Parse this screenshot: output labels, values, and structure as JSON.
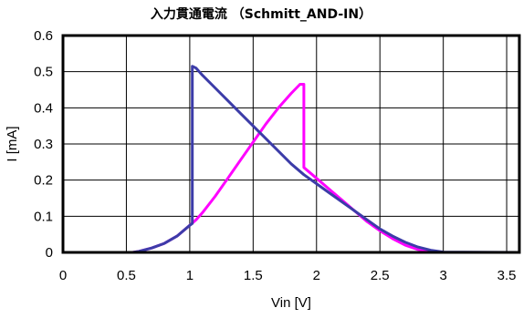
{
  "chart_data": {
    "type": "line",
    "title": "入力貫通電流 （Schmitt_AND-IN）",
    "xlabel": "Vin [V]",
    "ylabel": "I [mA]",
    "xlim": [
      0,
      3.6
    ],
    "ylim": [
      0,
      0.6
    ],
    "x_ticks": [
      0,
      0.5,
      1,
      1.5,
      2,
      2.5,
      3,
      3.5
    ],
    "x_tick_labels": [
      "0",
      "0.5",
      "1",
      "1.5",
      "2",
      "2.5",
      "3",
      "3.5"
    ],
    "y_ticks": [
      0,
      0.1,
      0.2,
      0.3,
      0.4,
      0.5,
      0.6
    ],
    "y_tick_labels": [
      "0",
      "0.1",
      "0.2",
      "0.3",
      "0.4",
      "0.5",
      "0.6"
    ],
    "grid": true,
    "series": [
      {
        "color": "#ff00ff",
        "x": [
          0,
          0.55,
          0.6,
          0.7,
          0.8,
          0.9,
          1.0,
          1.05,
          1.1,
          1.2,
          1.3,
          1.4,
          1.5,
          1.6,
          1.7,
          1.8,
          1.87,
          1.9,
          1.9,
          1.95,
          2.0,
          2.1,
          2.2,
          2.3,
          2.4,
          2.5,
          2.6,
          2.7,
          2.8,
          2.9,
          3.0,
          3.6
        ],
        "y": [
          0,
          0,
          0.003,
          0.012,
          0.025,
          0.045,
          0.075,
          0.09,
          0.11,
          0.155,
          0.205,
          0.255,
          0.305,
          0.355,
          0.4,
          0.44,
          0.465,
          0.465,
          0.235,
          0.22,
          0.205,
          0.175,
          0.145,
          0.115,
          0.085,
          0.06,
          0.038,
          0.02,
          0.008,
          0.002,
          0,
          0
        ]
      },
      {
        "color": "#3c3ca8",
        "x": [
          0,
          0.55,
          0.6,
          0.7,
          0.8,
          0.9,
          1.0,
          1.02,
          1.02,
          1.05,
          1.1,
          1.2,
          1.3,
          1.4,
          1.5,
          1.6,
          1.7,
          1.8,
          1.9,
          2.0,
          2.1,
          2.2,
          2.3,
          2.4,
          2.5,
          2.6,
          2.7,
          2.8,
          2.9,
          3.0,
          3.6
        ],
        "y": [
          0,
          0,
          0.003,
          0.012,
          0.025,
          0.045,
          0.075,
          0.08,
          0.515,
          0.51,
          0.49,
          0.455,
          0.42,
          0.385,
          0.35,
          0.315,
          0.28,
          0.245,
          0.215,
          0.19,
          0.165,
          0.14,
          0.115,
          0.09,
          0.065,
          0.045,
          0.028,
          0.015,
          0.006,
          0.001,
          0
        ]
      }
    ]
  }
}
